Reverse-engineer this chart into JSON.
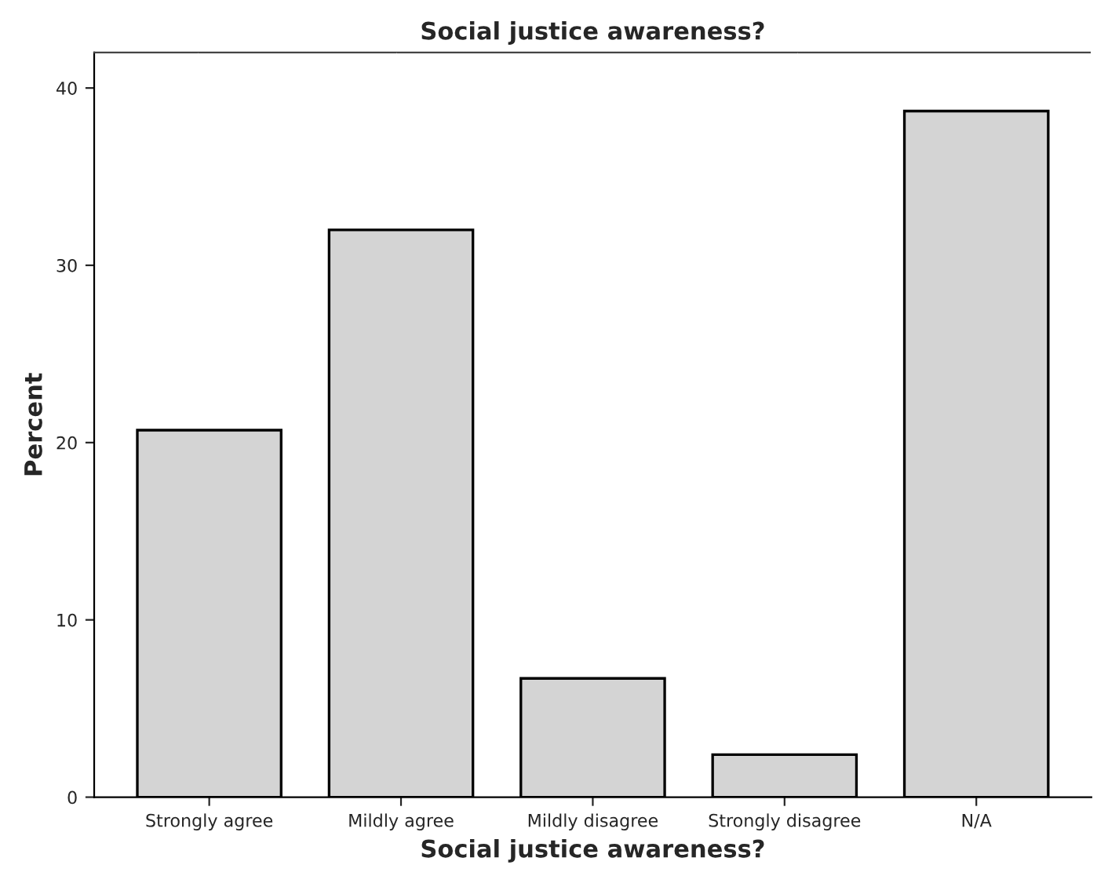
{
  "chart_data": {
    "type": "bar",
    "title": "Social justice awareness?",
    "xlabel": "Social justice awareness?",
    "ylabel": "Percent",
    "categories": [
      "Strongly agree",
      "Mildly agree",
      "Mildly disagree",
      "Strongly disagree",
      "N/A"
    ],
    "values": [
      20.7,
      32.0,
      6.7,
      2.4,
      38.7
    ],
    "color": "#d4d4d4",
    "ylim": [
      0,
      42
    ],
    "yticks": [
      0,
      10,
      20,
      30,
      40
    ],
    "grid": false
  }
}
